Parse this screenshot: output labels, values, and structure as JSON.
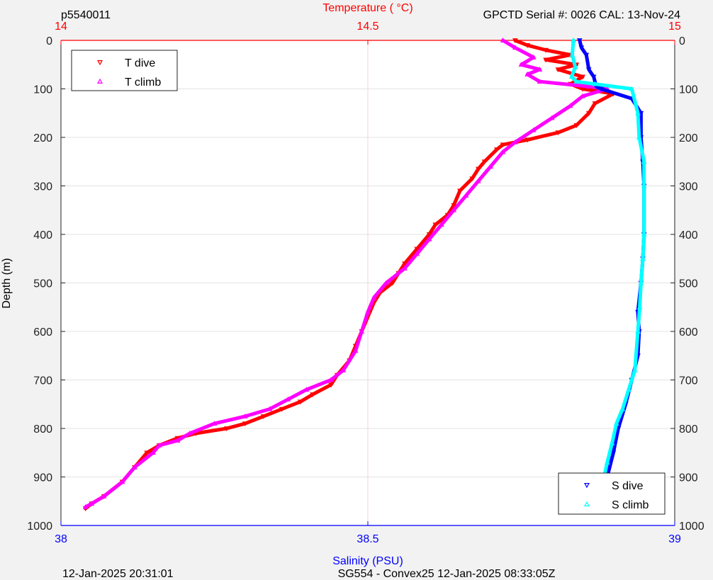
{
  "header": {
    "left": "p5540011",
    "right": "GPCTD Serial #: 0026 CAL: 13-Nov-24"
  },
  "footer": {
    "left": "12-Jan-2025 20:31:01",
    "center": "SG554 - Convex25 12-Jan-2025 08:33:05Z"
  },
  "chart_data": {
    "type": "line",
    "title": "",
    "y_axis": {
      "label": "Depth (m)",
      "range": [
        0,
        1000
      ],
      "reversed": true,
      "ticks": [
        0,
        100,
        200,
        300,
        400,
        500,
        600,
        700,
        800,
        900,
        1000
      ]
    },
    "x_top_axis": {
      "label": "Temperature (    °C)",
      "range": [
        14,
        15
      ],
      "ticks": [
        "14",
        "14.5",
        "15"
      ],
      "color": "#ff0000"
    },
    "x_bottom_axis": {
      "label": "Salinity (PSU)",
      "range": [
        38,
        39
      ],
      "ticks": [
        "38",
        "38.5",
        "39"
      ],
      "color": "#0000ff"
    },
    "grid": true,
    "legend_top_left": {
      "placement": "top-left",
      "entries": [
        "T dive",
        "T climb"
      ]
    },
    "legend_bottom_right": {
      "placement": "bottom-right",
      "entries": [
        "S dive",
        "S climb"
      ]
    },
    "series": [
      {
        "name": "T dive",
        "axis": "temperature",
        "color": "#ff0000",
        "marker": "triangle-down",
        "points": [
          [
            14.74,
            0
          ],
          [
            14.76,
            10
          ],
          [
            14.79,
            20
          ],
          [
            14.83,
            30
          ],
          [
            14.79,
            40
          ],
          [
            14.84,
            50
          ],
          [
            14.81,
            60
          ],
          [
            14.85,
            75
          ],
          [
            14.83,
            90
          ],
          [
            14.85,
            100
          ],
          [
            14.9,
            110
          ],
          [
            14.87,
            130
          ],
          [
            14.86,
            150
          ],
          [
            14.84,
            175
          ],
          [
            14.81,
            190
          ],
          [
            14.76,
            205
          ],
          [
            14.72,
            215
          ],
          [
            14.71,
            225
          ],
          [
            14.69,
            250
          ],
          [
            14.68,
            265
          ],
          [
            14.67,
            285
          ],
          [
            14.65,
            310
          ],
          [
            14.64,
            340
          ],
          [
            14.63,
            360
          ],
          [
            14.61,
            380
          ],
          [
            14.6,
            400
          ],
          [
            14.58,
            430
          ],
          [
            14.56,
            460
          ],
          [
            14.55,
            480
          ],
          [
            14.54,
            500
          ],
          [
            14.52,
            520
          ],
          [
            14.51,
            540
          ],
          [
            14.5,
            570
          ],
          [
            14.49,
            600
          ],
          [
            14.48,
            630
          ],
          [
            14.47,
            660
          ],
          [
            14.45,
            690
          ],
          [
            14.44,
            710
          ],
          [
            14.41,
            730
          ],
          [
            14.39,
            745
          ],
          [
            14.36,
            760
          ],
          [
            14.33,
            775
          ],
          [
            14.3,
            790
          ],
          [
            14.27,
            800
          ],
          [
            14.22,
            810
          ],
          [
            14.19,
            820
          ],
          [
            14.16,
            835
          ],
          [
            14.14,
            850
          ],
          [
            14.12,
            880
          ],
          [
            14.1,
            910
          ],
          [
            14.07,
            940
          ],
          [
            14.05,
            955
          ],
          [
            14.04,
            965
          ]
        ]
      },
      {
        "name": "T climb",
        "axis": "temperature",
        "color": "#ff00ff",
        "marker": "triangle-up",
        "points": [
          [
            14.72,
            0
          ],
          [
            14.74,
            15
          ],
          [
            14.77,
            35
          ],
          [
            14.75,
            50
          ],
          [
            14.78,
            60
          ],
          [
            14.76,
            70
          ],
          [
            14.78,
            85
          ],
          [
            14.86,
            95
          ],
          [
            14.89,
            100
          ],
          [
            14.85,
            115
          ],
          [
            14.83,
            135
          ],
          [
            14.8,
            160
          ],
          [
            14.77,
            185
          ],
          [
            14.74,
            210
          ],
          [
            14.72,
            230
          ],
          [
            14.7,
            260
          ],
          [
            14.68,
            290
          ],
          [
            14.66,
            320
          ],
          [
            14.64,
            350
          ],
          [
            14.62,
            380
          ],
          [
            14.6,
            410
          ],
          [
            14.58,
            440
          ],
          [
            14.56,
            470
          ],
          [
            14.53,
            500
          ],
          [
            14.51,
            530
          ],
          [
            14.5,
            560
          ],
          [
            14.49,
            600
          ],
          [
            14.48,
            640
          ],
          [
            14.46,
            680
          ],
          [
            14.44,
            700
          ],
          [
            14.4,
            720
          ],
          [
            14.37,
            740
          ],
          [
            14.34,
            760
          ],
          [
            14.3,
            775
          ],
          [
            14.25,
            790
          ],
          [
            14.21,
            810
          ],
          [
            14.19,
            825
          ],
          [
            14.16,
            835
          ],
          [
            14.15,
            850
          ],
          [
            14.12,
            880
          ],
          [
            14.1,
            910
          ],
          [
            14.07,
            940
          ],
          [
            14.05,
            955
          ],
          [
            14.04,
            962
          ]
        ]
      },
      {
        "name": "S dive",
        "axis": "salinity",
        "color": "#0000ff",
        "marker": "triangle-down",
        "points": [
          [
            38.845,
            0
          ],
          [
            38.848,
            15
          ],
          [
            38.856,
            30
          ],
          [
            38.86,
            60
          ],
          [
            38.868,
            75
          ],
          [
            38.872,
            95
          ],
          [
            38.88,
            100
          ],
          [
            38.93,
            120
          ],
          [
            38.945,
            150
          ],
          [
            38.945,
            200
          ],
          [
            38.948,
            250
          ],
          [
            38.95,
            300
          ],
          [
            38.95,
            400
          ],
          [
            38.948,
            450
          ],
          [
            38.945,
            500
          ],
          [
            38.94,
            560
          ],
          [
            38.942,
            600
          ],
          [
            38.94,
            650
          ],
          [
            38.93,
            700
          ],
          [
            38.92,
            750
          ],
          [
            38.908,
            800
          ],
          [
            38.9,
            850
          ],
          [
            38.89,
            900
          ],
          [
            38.88,
            950
          ],
          [
            38.875,
            965
          ]
        ]
      },
      {
        "name": "S climb",
        "axis": "salinity",
        "color": "#00ffff",
        "marker": "triangle-up",
        "points": [
          [
            38.835,
            0
          ],
          [
            38.833,
            30
          ],
          [
            38.838,
            55
          ],
          [
            38.832,
            75
          ],
          [
            38.84,
            85
          ],
          [
            38.87,
            90
          ],
          [
            38.93,
            100
          ],
          [
            38.94,
            150
          ],
          [
            38.942,
            200
          ],
          [
            38.95,
            250
          ],
          [
            38.95,
            300
          ],
          [
            38.95,
            400
          ],
          [
            38.948,
            450
          ],
          [
            38.945,
            500
          ],
          [
            38.943,
            550
          ],
          [
            38.94,
            600
          ],
          [
            38.935,
            680
          ],
          [
            38.925,
            720
          ],
          [
            38.915,
            760
          ],
          [
            38.905,
            790
          ],
          [
            38.898,
            830
          ],
          [
            38.89,
            870
          ],
          [
            38.885,
            900
          ],
          [
            38.878,
            940
          ],
          [
            38.875,
            962
          ]
        ]
      }
    ]
  }
}
